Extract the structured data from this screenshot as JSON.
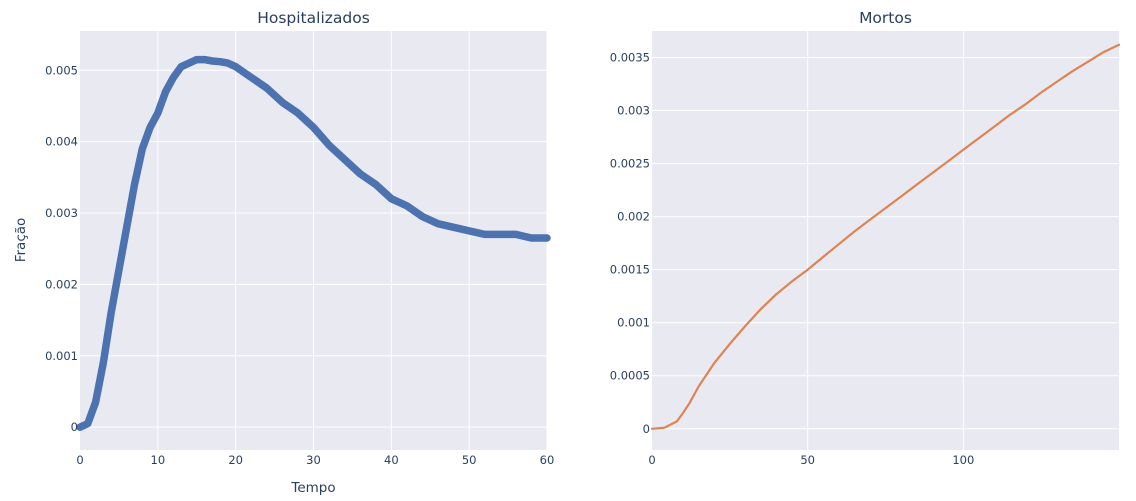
{
  "chart_data": [
    {
      "type": "scatter",
      "title": "Hospitalizados",
      "xlabel": "Tempo",
      "ylabel": "Fração",
      "xlim": [
        0,
        60
      ],
      "ylim": [
        -0.00032,
        0.00555
      ],
      "xticks": [
        0,
        10,
        20,
        30,
        40,
        50,
        60
      ],
      "xtick_labels": [
        "0",
        "10",
        "20",
        "30",
        "40",
        "50",
        "60"
      ],
      "yticks": [
        0,
        0.001,
        0.002,
        0.003,
        0.004,
        0.005
      ],
      "ytick_labels": [
        "0",
        "0.001",
        "0.002",
        "0.003",
        "0.004",
        "0.005"
      ],
      "grid": true,
      "color": "#4c72b0",
      "series": [
        {
          "x": [
            0,
            1,
            2,
            3,
            4,
            5,
            6,
            7,
            8,
            9,
            10,
            11,
            12,
            13,
            14,
            15,
            16,
            17,
            18,
            19,
            20,
            22,
            24,
            26,
            28,
            30,
            32,
            34,
            36,
            38,
            40,
            42,
            44,
            46,
            48,
            50,
            52,
            54,
            56,
            58,
            60
          ],
          "values": [
            0,
            5e-05,
            0.00035,
            0.0009,
            0.0016,
            0.0022,
            0.0028,
            0.0034,
            0.0039,
            0.0042,
            0.0044,
            0.0047,
            0.0049,
            0.00505,
            0.0051,
            0.00515,
            0.00515,
            0.00513,
            0.00512,
            0.0051,
            0.00505,
            0.0049,
            0.00475,
            0.00455,
            0.0044,
            0.0042,
            0.00395,
            0.00375,
            0.00355,
            0.0034,
            0.0032,
            0.0031,
            0.00295,
            0.00285,
            0.0028,
            0.00275,
            0.0027,
            0.0027,
            0.0027,
            0.00265,
            0.00265
          ]
        }
      ]
    },
    {
      "type": "line",
      "title": "Mortos",
      "xlabel": "",
      "ylabel": "",
      "xlim": [
        0,
        150
      ],
      "ylim": [
        -0.0002,
        0.00375
      ],
      "xticks": [
        0,
        50,
        100
      ],
      "xtick_labels": [
        "0",
        "50",
        "100"
      ],
      "yticks": [
        0,
        0.0005,
        0.001,
        0.0015,
        0.002,
        0.0025,
        0.003,
        0.0035
      ],
      "ytick_labels": [
        "0",
        "0.0005",
        "0.001",
        "0.0015",
        "0.002",
        "0.0025",
        "0.003",
        "0.0035"
      ],
      "grid": true,
      "color": "#dd8452",
      "series": [
        {
          "x": [
            0,
            4,
            8,
            10,
            12,
            15,
            20,
            25,
            30,
            35,
            40,
            45,
            50,
            55,
            60,
            65,
            70,
            75,
            80,
            85,
            90,
            95,
            100,
            105,
            110,
            115,
            120,
            125,
            130,
            135,
            140,
            145,
            150
          ],
          "values": [
            0,
            1e-05,
            7e-05,
            0.00015,
            0.00024,
            0.0004,
            0.00062,
            0.0008,
            0.00097,
            0.00113,
            0.00127,
            0.00139,
            0.0015,
            0.00162,
            0.00174,
            0.00186,
            0.00197,
            0.00208,
            0.00219,
            0.0023,
            0.00241,
            0.00252,
            0.00263,
            0.00274,
            0.00285,
            0.00296,
            0.00306,
            0.00317,
            0.00327,
            0.00337,
            0.00346,
            0.00355,
            0.00362
          ]
        }
      ]
    }
  ]
}
